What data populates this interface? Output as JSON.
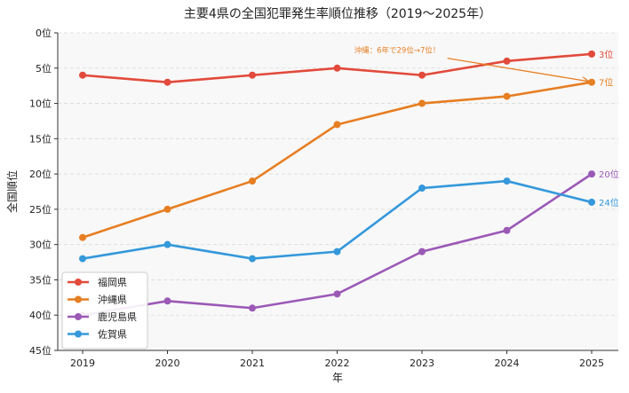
{
  "chart_data": {
    "type": "line",
    "title": "主要4県の全国犯罪発生率順位推移（2019〜2025年）",
    "xlabel": "年",
    "ylabel": "全国順位",
    "x": [
      2019,
      2020,
      2021,
      2022,
      2023,
      2024,
      2025
    ],
    "x_tick_labels": [
      "2019",
      "2020",
      "2021",
      "2022",
      "2023",
      "2024",
      "2025"
    ],
    "ylim": [
      0,
      45
    ],
    "y_inverted": true,
    "y_ticks": [
      0,
      5,
      10,
      15,
      20,
      25,
      30,
      35,
      40,
      45
    ],
    "y_tick_labels": [
      "0位",
      "5位",
      "10位",
      "15位",
      "20位",
      "25位",
      "30位",
      "35位",
      "40位",
      "45位"
    ],
    "grid": "horizontal dashed",
    "legend_position": "bottom-left",
    "series": [
      {
        "name": "福岡県",
        "color": "#e24a3b",
        "values": [
          6,
          7,
          6,
          5,
          6,
          4,
          3
        ],
        "end_label": "3位"
      },
      {
        "name": "沖縄県",
        "color": "#e67e22",
        "values": [
          29,
          25,
          21,
          13,
          10,
          9,
          7
        ],
        "end_label": "7位"
      },
      {
        "name": "鹿児島県",
        "color": "#9b59b6",
        "values": [
          40,
          38,
          39,
          37,
          31,
          28,
          20
        ],
        "end_label": "20位"
      },
      {
        "name": "佐賀県",
        "color": "#3498db",
        "values": [
          32,
          30,
          32,
          31,
          22,
          21,
          24
        ],
        "end_label": "24位"
      }
    ],
    "annotations": [
      {
        "text": "沖縄：6年で29位→7位！",
        "color": "#e67e22",
        "text_x": 2022.2,
        "text_y": 2.8,
        "arrow_from_x": 2023.3,
        "arrow_from_y": 3.6,
        "arrow_to_x": 2025,
        "arrow_to_y": 7
      }
    ]
  }
}
